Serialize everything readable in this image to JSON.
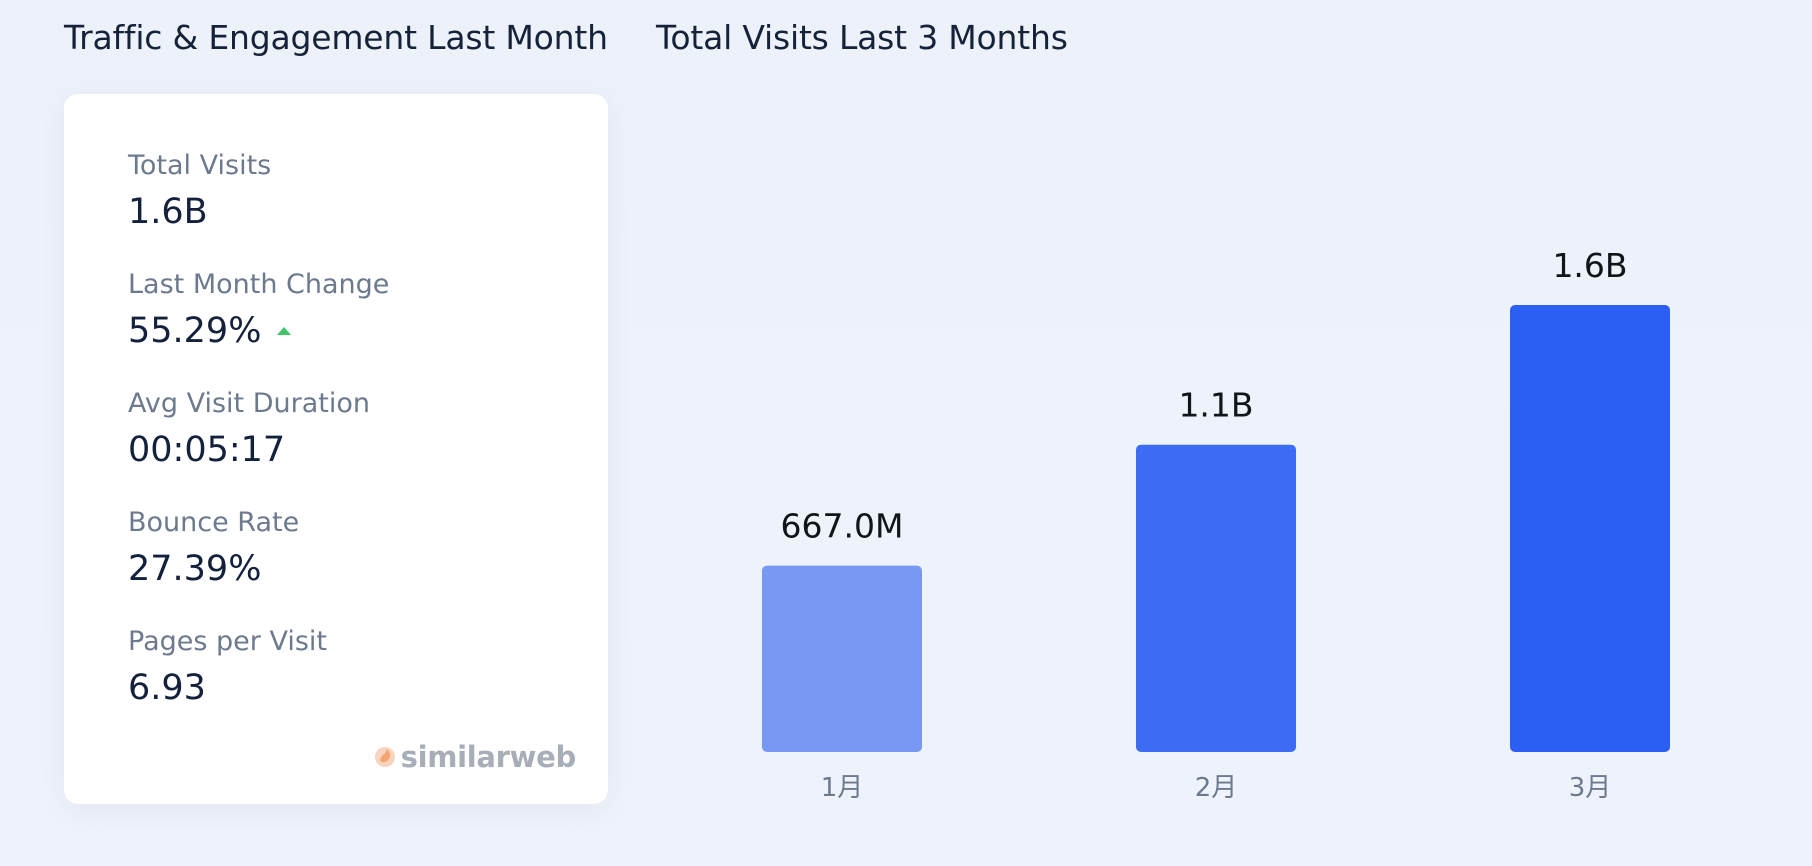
{
  "left_panel": {
    "title": "Traffic & Engagement Last Month",
    "metrics": [
      {
        "label": "Total Visits",
        "value": "1.6B"
      },
      {
        "label": "Last Month Change",
        "value": "55.29%",
        "trend": "up"
      },
      {
        "label": "Avg Visit Duration",
        "value": "00:05:17"
      },
      {
        "label": "Bounce Rate",
        "value": "27.39%"
      },
      {
        "label": "Pages per Visit",
        "value": "6.93"
      }
    ],
    "brand": "similarweb",
    "colors": {
      "trend_up": "#3fc46a",
      "brand_orange": "#f2b187"
    }
  },
  "right_panel": {
    "title": "Total Visits Last 3 Months"
  },
  "chart_data": {
    "type": "bar",
    "title": "Total Visits Last 3 Months",
    "categories": [
      "1月",
      "2月",
      "3月"
    ],
    "values": [
      667000000,
      1100000000,
      1600000000
    ],
    "data_labels": [
      "667.0M",
      "1.1B",
      "1.6B"
    ],
    "colors": [
      "#7799f4",
      "#3d6cf4",
      "#2b5ef3"
    ],
    "ylim": [
      0,
      1600000000
    ],
    "grid": false,
    "legend": "none"
  }
}
